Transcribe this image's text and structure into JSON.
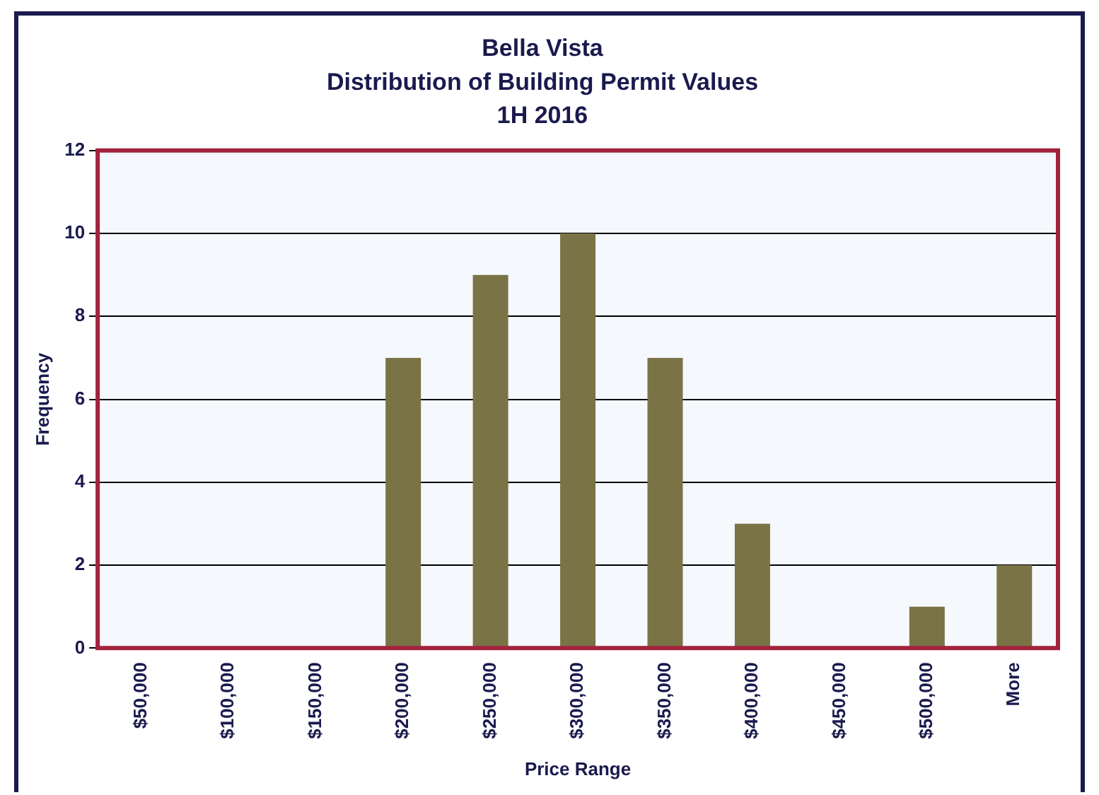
{
  "chart_data": {
    "type": "bar",
    "title": "Bella Vista\nDistribution of Building Permit Values\n1H 2016",
    "xlabel": "Price Range",
    "ylabel": "Frequency",
    "categories": [
      "$50,000",
      "$100,000",
      "$150,000",
      "$200,000",
      "$250,000",
      "$300,000",
      "$350,000",
      "$400,000",
      "$450,000",
      "$500,000",
      "More"
    ],
    "values": [
      0,
      0,
      0,
      7,
      9,
      10,
      7,
      3,
      0,
      1,
      2
    ],
    "color": "#7a7346",
    "ylim": [
      0,
      12
    ],
    "yticks": [
      0,
      2,
      4,
      6,
      8,
      10,
      12
    ],
    "grid": "y",
    "legend": false
  }
}
